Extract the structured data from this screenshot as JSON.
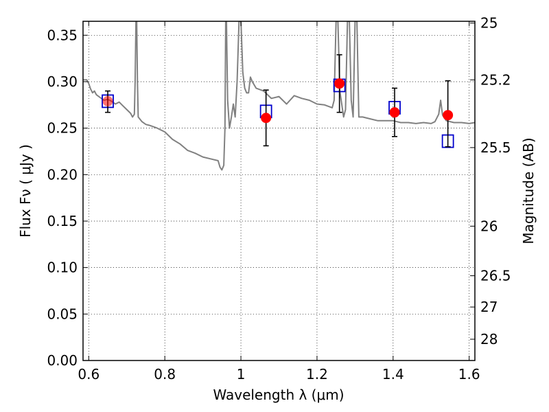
{
  "chart_data": {
    "type": "scatter",
    "xlabel": "Wavelength  λ (μm)",
    "ylabel": "Flux  Fν  ( μJy )",
    "ylabel_right": "Magnitude (AB)",
    "xlim": [
      0.585,
      1.615
    ],
    "ylim": [
      0.0,
      0.365
    ],
    "grid": true,
    "x_ticks": [
      {
        "value": 0.6,
        "label": "0.6"
      },
      {
        "value": 0.8,
        "label": "0.8"
      },
      {
        "value": 1.0,
        "label": "1"
      },
      {
        "value": 1.2,
        "label": "1.2"
      },
      {
        "value": 1.4,
        "label": "1.4"
      },
      {
        "value": 1.6,
        "label": "1.6"
      }
    ],
    "y_ticks": [
      {
        "value": 0.0,
        "label": "0.00"
      },
      {
        "value": 0.05,
        "label": "0.05"
      },
      {
        "value": 0.1,
        "label": "0.10"
      },
      {
        "value": 0.15,
        "label": "0.15"
      },
      {
        "value": 0.2,
        "label": "0.20"
      },
      {
        "value": 0.25,
        "label": "0.25"
      },
      {
        "value": 0.3,
        "label": "0.30"
      },
      {
        "value": 0.35,
        "label": "0.35"
      }
    ],
    "mag_ticks": [
      {
        "mag": 25,
        "label": "25"
      },
      {
        "mag": 25.2,
        "label": "25.2"
      },
      {
        "mag": 25.5,
        "label": "25.5"
      },
      {
        "mag": 26,
        "label": "26"
      },
      {
        "mag": 26.5,
        "label": "26.5"
      },
      {
        "mag": 27,
        "label": "27"
      },
      {
        "mag": 28,
        "label": "28"
      }
    ],
    "series": [
      {
        "type": "line",
        "color": "#808080",
        "x": [
          0.585,
          0.595,
          0.6,
          0.605,
          0.61,
          0.615,
          0.62,
          0.63,
          0.64,
          0.65,
          0.66,
          0.67,
          0.68,
          0.69,
          0.7,
          0.71,
          0.715,
          0.72,
          0.722,
          0.724,
          0.726,
          0.728,
          0.73,
          0.74,
          0.75,
          0.76,
          0.78,
          0.8,
          0.82,
          0.84,
          0.86,
          0.88,
          0.9,
          0.92,
          0.94,
          0.945,
          0.95,
          0.955,
          0.958,
          0.96,
          0.962,
          0.965,
          0.97,
          0.975,
          0.98,
          0.985,
          0.99,
          0.995,
          1.0,
          1.005,
          1.01,
          1.015,
          1.02,
          1.025,
          1.03,
          1.04,
          1.06,
          1.08,
          1.1,
          1.12,
          1.14,
          1.16,
          1.18,
          1.2,
          1.22,
          1.24,
          1.245,
          1.25,
          1.255,
          1.26,
          1.27,
          1.275,
          1.28,
          1.285,
          1.29,
          1.295,
          1.3,
          1.305,
          1.31,
          1.32,
          1.34,
          1.36,
          1.38,
          1.4,
          1.42,
          1.44,
          1.46,
          1.48,
          1.5,
          1.51,
          1.52,
          1.525,
          1.53,
          1.54,
          1.56,
          1.58,
          1.6,
          1.615
        ],
        "y": [
          0.302,
          0.302,
          0.298,
          0.292,
          0.288,
          0.29,
          0.286,
          0.283,
          0.28,
          0.281,
          0.279,
          0.276,
          0.278,
          0.274,
          0.27,
          0.266,
          0.262,
          0.265,
          0.3,
          0.365,
          0.365,
          0.3,
          0.262,
          0.257,
          0.254,
          0.253,
          0.25,
          0.246,
          0.238,
          0.233,
          0.226,
          0.223,
          0.219,
          0.217,
          0.215,
          0.208,
          0.205,
          0.21,
          0.25,
          0.365,
          0.365,
          0.28,
          0.25,
          0.262,
          0.276,
          0.262,
          0.3,
          0.365,
          0.365,
          0.31,
          0.293,
          0.288,
          0.288,
          0.305,
          0.3,
          0.293,
          0.29,
          0.282,
          0.284,
          0.276,
          0.285,
          0.282,
          0.28,
          0.276,
          0.275,
          0.272,
          0.28,
          0.365,
          0.365,
          0.29,
          0.262,
          0.27,
          0.365,
          0.365,
          0.28,
          0.262,
          0.365,
          0.365,
          0.262,
          0.262,
          0.26,
          0.258,
          0.258,
          0.258,
          0.256,
          0.256,
          0.255,
          0.256,
          0.255,
          0.257,
          0.265,
          0.28,
          0.264,
          0.258,
          0.256,
          0.256,
          0.255,
          0.256
        ]
      },
      {
        "type": "scatter",
        "marker": "square",
        "color": "#0000cc",
        "x": [
          0.65,
          1.066,
          1.259,
          1.404,
          1.544
        ],
        "y": [
          0.279,
          0.268,
          0.296,
          0.272,
          0.236
        ]
      },
      {
        "type": "scatter",
        "marker": "circle",
        "color": "#ff0000",
        "x": [
          0.65,
          1.066,
          1.259,
          1.404,
          1.544
        ],
        "y": [
          0.279,
          0.261,
          0.298,
          0.267,
          0.264
        ],
        "yerr_low": [
          0.012,
          0.03,
          0.031,
          0.026,
          0.034
        ],
        "yerr_high": [
          0.011,
          0.03,
          0.031,
          0.026,
          0.037
        ]
      }
    ]
  }
}
